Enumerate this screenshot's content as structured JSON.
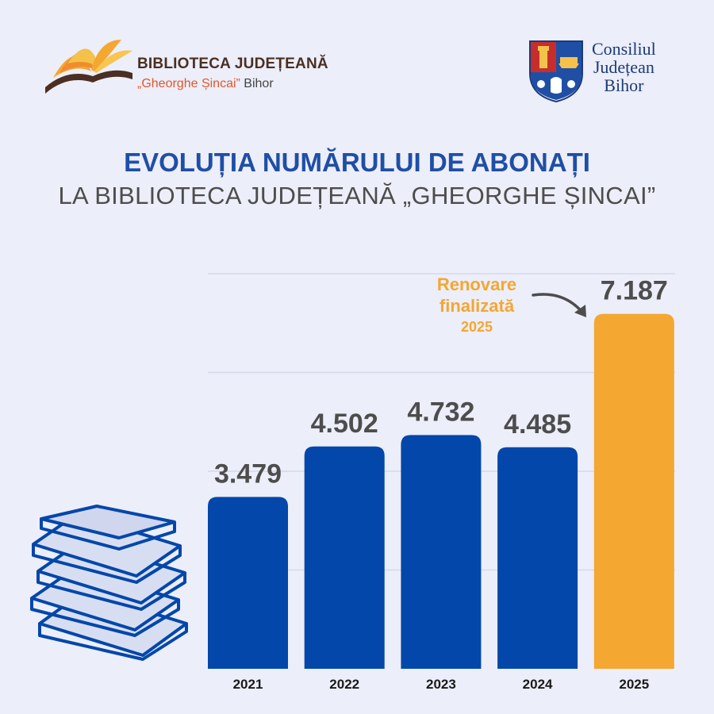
{
  "header": {
    "library_name": "BIBLIOTECA JUDEȚEANĂ",
    "library_sub_quote": "„Gheorghe Șincai”",
    "library_sub_place": "Bihor",
    "council_line1": "Consiliul",
    "council_line2": "Județean",
    "council_line3": "Bihor"
  },
  "title": {
    "line1": "EVOLUȚIA NUMĂRULUI DE ABONAȚI",
    "line2": "LA BIBLIOTECA JUDEȚEANĂ „GHEORGHE ȘINCAI”"
  },
  "annotation": {
    "line1": "Renovare",
    "line2": "finalizată",
    "line3": "2025"
  },
  "colors": {
    "bar_default": "#0347aa",
    "bar_highlight": "#f4a731",
    "value_label": "#4d4d4d",
    "title_accent": "#1f4fa5"
  },
  "chart_data": {
    "type": "bar",
    "title": "EVOLUȚIA NUMĂRULUI DE ABONAȚI LA BIBLIOTECA JUDEȚEANĂ „GHEORGHE ȘINCAI”",
    "categories": [
      "2021",
      "2022",
      "2023",
      "2024",
      "2025"
    ],
    "values": [
      3479,
      4502,
      4732,
      4485,
      7187
    ],
    "value_labels": [
      "3.479",
      "4.502",
      "4.732",
      "4.485",
      "7.187"
    ],
    "highlight_index": 4,
    "xlabel": "",
    "ylabel": "",
    "ylim": [
      0,
      8000
    ],
    "grid": true,
    "legend": "none"
  }
}
